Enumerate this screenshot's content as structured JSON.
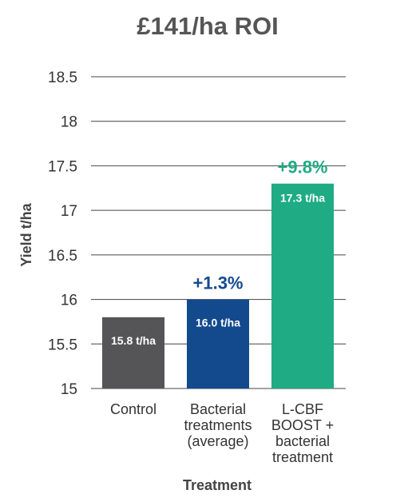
{
  "chart_data": {
    "type": "bar",
    "title": "£141/ha ROI",
    "xlabel": "Treatment",
    "ylabel": "Yield t/ha",
    "ylim": [
      15,
      18.5
    ],
    "yticks": [
      "15",
      "15.5",
      "16",
      "16.5",
      "17",
      "17.5",
      "18",
      "18.5"
    ],
    "grid": true,
    "categories": [
      [
        "Control"
      ],
      [
        "Bacterial",
        "treatments",
        "(average)"
      ],
      [
        "L-CBF",
        "BOOST +",
        "bacterial",
        "treatment"
      ]
    ],
    "values": [
      15.8,
      16.0,
      17.3
    ],
    "bar_labels": [
      "15.8 t/ha",
      "16.0 t/ha",
      "17.3 t/ha"
    ],
    "annotations": [
      "",
      "+1.3%",
      "+9.8%"
    ],
    "colors": [
      "#555557",
      "#134a8e",
      "#1fab84"
    ]
  }
}
